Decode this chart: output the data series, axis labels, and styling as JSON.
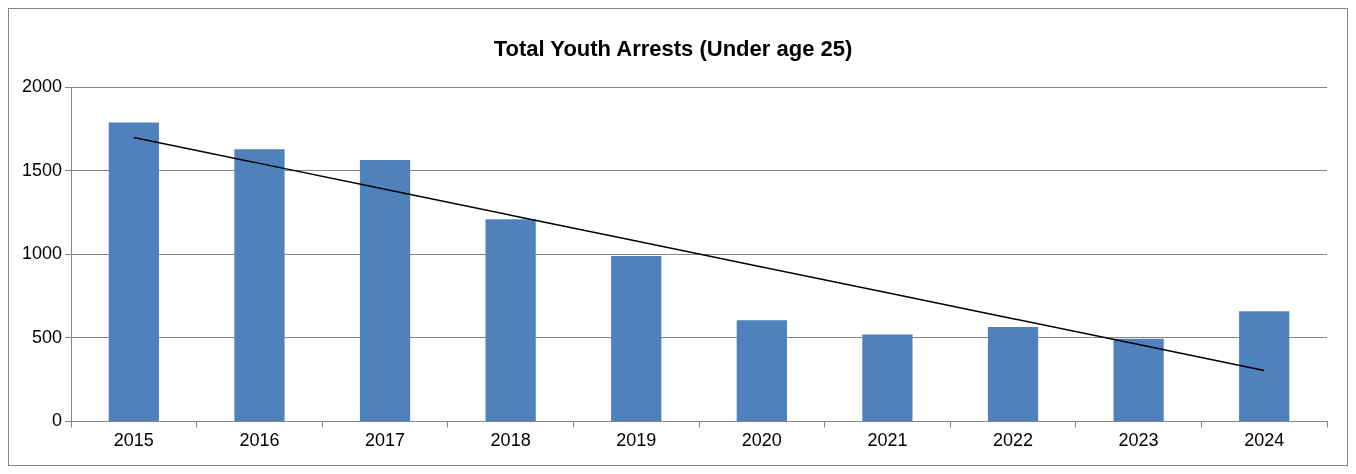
{
  "chart_data": {
    "type": "bar",
    "title": "Total Youth Arrests (Under age 25)",
    "categories": [
      "2015",
      "2016",
      "2017",
      "2018",
      "2019",
      "2020",
      "2021",
      "2022",
      "2023",
      "2024"
    ],
    "series": [
      {
        "color": "#4f81bd",
        "values": [
          1790,
          1630,
          1565,
          1210,
          990,
          605,
          520,
          565,
          495,
          660
        ]
      },
      {
        "type": "line",
        "color": "#000000",
        "values": [
          1700,
          1545,
          1390,
          1235,
          1080,
          925,
          770,
          615,
          460,
          305
        ]
      }
    ],
    "ylim": [
      0,
      2000
    ],
    "yticks": [
      0,
      500,
      1000,
      1500,
      2000
    ],
    "grid": "y",
    "legend": false,
    "marker": "none"
  }
}
